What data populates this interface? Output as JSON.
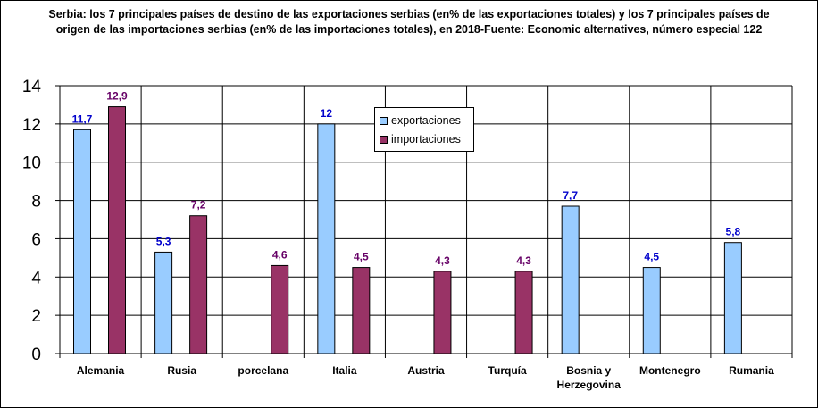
{
  "chart_data": {
    "type": "bar",
    "title": "Serbia: los 7 principales países de destino de las exportaciones serbias (en% de las exportaciones totales) y los 7 principales países de\norigen de las importaciones serbias (en% de las importaciones totales), en 2018-Fuente: Economic alternatives, número especial 122",
    "categories": [
      "Alemania",
      "Rusia",
      "porcelana",
      "Italia",
      "Austria",
      "Turquía",
      "Bosnia y\nHerzegovina",
      "Montenegro",
      "Rumania"
    ],
    "series": [
      {
        "name": "exportaciones",
        "color": "#99ccff",
        "label_color": "#0000cc",
        "values": [
          11.7,
          5.3,
          null,
          12,
          null,
          null,
          7.7,
          4.5,
          5.8
        ],
        "labels": [
          "11,7",
          "5,3",
          "",
          "12",
          "",
          "",
          "7,7",
          "4,5",
          "5,8"
        ]
      },
      {
        "name": "importaciones",
        "color": "#993366",
        "label_color": "#660066",
        "values": [
          12.9,
          7.2,
          4.6,
          4.5,
          4.3,
          4.3,
          null,
          null,
          null
        ],
        "labels": [
          "12,9",
          "7,2",
          "4,6",
          "4,5",
          "4,3",
          "4,3",
          "",
          "",
          ""
        ]
      }
    ],
    "yticks": [
      "0",
      "2",
      "4",
      "6",
      "8",
      "10",
      "12",
      "14"
    ],
    "ylim": [
      0,
      14
    ],
    "grid": true,
    "legend_position": "upper-middle"
  }
}
